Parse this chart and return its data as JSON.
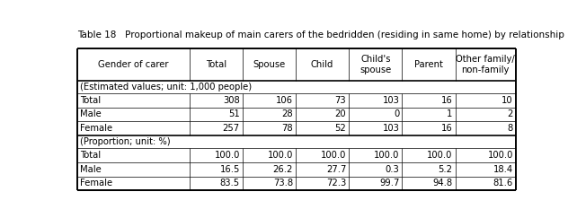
{
  "title": "Table 18   Proportional makeup of main carers of the bedridden (residing in same home) by relationship",
  "col_headers": [
    "Gender of carer",
    "Total",
    "Spouse",
    "Child",
    "Child's\nspouse",
    "Parent",
    "Other family/\nnon-family"
  ],
  "section1_label": "(Estimated values; unit: 1,000 people)",
  "section2_label": "(Proportion; unit: %)",
  "rows_estimated": [
    [
      "Total",
      "308",
      "106",
      "73",
      "103",
      "16",
      "10"
    ],
    [
      "Male",
      "51",
      "28",
      "20",
      "0",
      "1",
      "2"
    ],
    [
      "Female",
      "257",
      "78",
      "52",
      "103",
      "16",
      "8"
    ]
  ],
  "rows_proportion": [
    [
      "Total",
      "100.0",
      "100.0",
      "100.0",
      "100.0",
      "100.0",
      "100.0"
    ],
    [
      "Male",
      "16.5",
      "26.2",
      "27.7",
      "0.3",
      "5.2",
      "18.4"
    ],
    [
      "Female",
      "83.5",
      "73.8",
      "72.3",
      "99.7",
      "94.8",
      "81.6"
    ]
  ],
  "col_widths_rel": [
    1.85,
    0.88,
    0.88,
    0.88,
    0.88,
    0.88,
    1.0
  ],
  "background_color": "#ffffff",
  "title_fontsize": 7.5,
  "cell_fontsize": 7.2,
  "header_fontsize": 7.2,
  "thick_lw": 1.2,
  "thin_lw": 0.5
}
